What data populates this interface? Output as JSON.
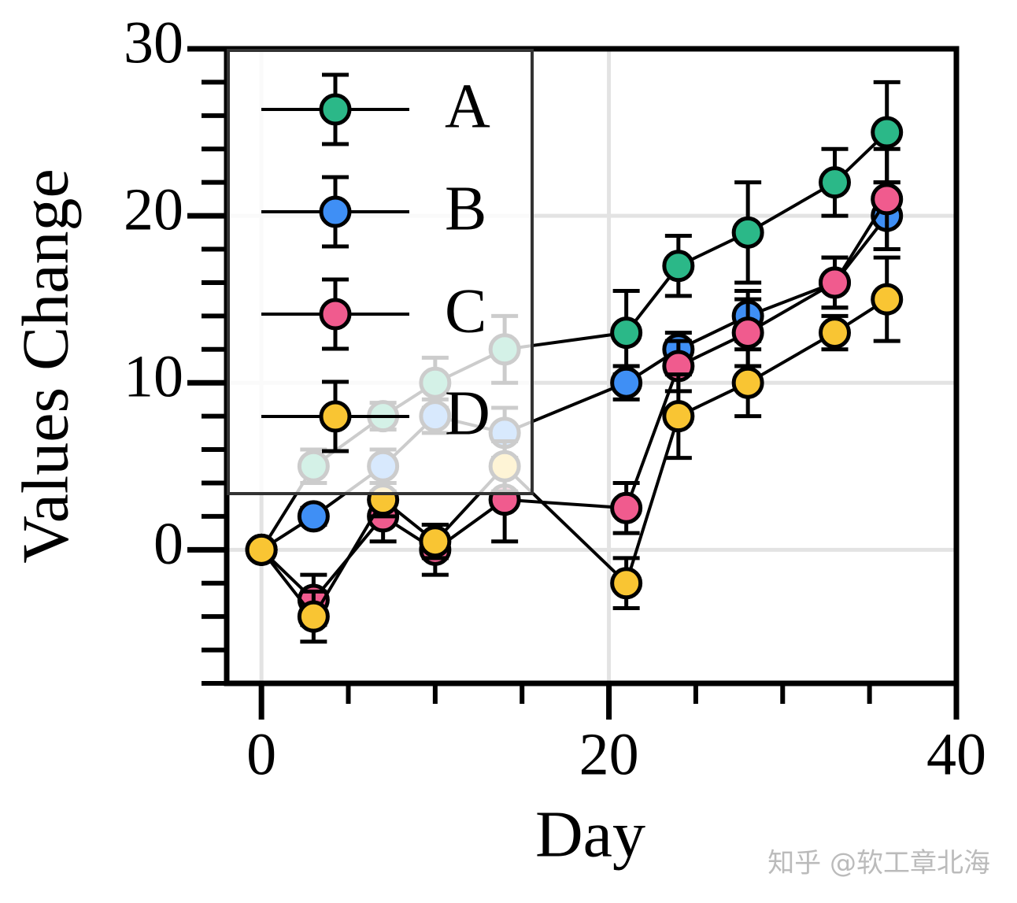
{
  "chart_data": {
    "type": "errorbar-line",
    "xlabel": "Day",
    "ylabel": "Values Change",
    "x": [
      0,
      3,
      7,
      10,
      14,
      21,
      24,
      28,
      33,
      36
    ],
    "series": [
      {
        "name": "A",
        "color": "#2bb888",
        "values": [
          0,
          5,
          8,
          10,
          12,
          13,
          17,
          19,
          22,
          25
        ],
        "errors": [
          0,
          1,
          0.8,
          1.5,
          2,
          2.5,
          1.8,
          3,
          2,
          3
        ]
      },
      {
        "name": "B",
        "color": "#3f8ff5",
        "values": [
          0,
          2,
          5,
          8,
          7,
          10,
          12,
          14,
          16,
          20
        ],
        "errors": [
          0,
          0.5,
          1,
          1,
          1.5,
          1,
          1,
          1.5,
          1.5,
          2
        ]
      },
      {
        "name": "C",
        "color": "#f05b8e",
        "values": [
          0,
          -3,
          2,
          0,
          3,
          2.5,
          11,
          13,
          16,
          21
        ],
        "errors": [
          0,
          1.5,
          1.5,
          1.5,
          2.5,
          1.5,
          1.5,
          2,
          1.5,
          3
        ]
      },
      {
        "name": "D",
        "color": "#f9c533",
        "values": [
          0,
          -4,
          3,
          0.5,
          5,
          -2,
          8,
          10,
          13,
          15
        ],
        "errors": [
          0,
          1.5,
          1,
          1,
          1.5,
          1.5,
          2.5,
          2,
          1,
          2.5
        ]
      }
    ],
    "xlim": [
      -2,
      40
    ],
    "ylim": [
      -8,
      30
    ],
    "xticks": [
      0,
      20,
      40
    ],
    "yticks": [
      0,
      10,
      20,
      30
    ],
    "xminorticks": [
      5,
      10,
      15,
      25,
      30,
      35
    ],
    "yminorticks": [
      -8,
      -6,
      -4,
      -2,
      2,
      4,
      6,
      8,
      12,
      14,
      16,
      18,
      22,
      24,
      26,
      28
    ],
    "grid": true,
    "legend": "upper left",
    "watermark": "知乎 @软工章北海"
  }
}
